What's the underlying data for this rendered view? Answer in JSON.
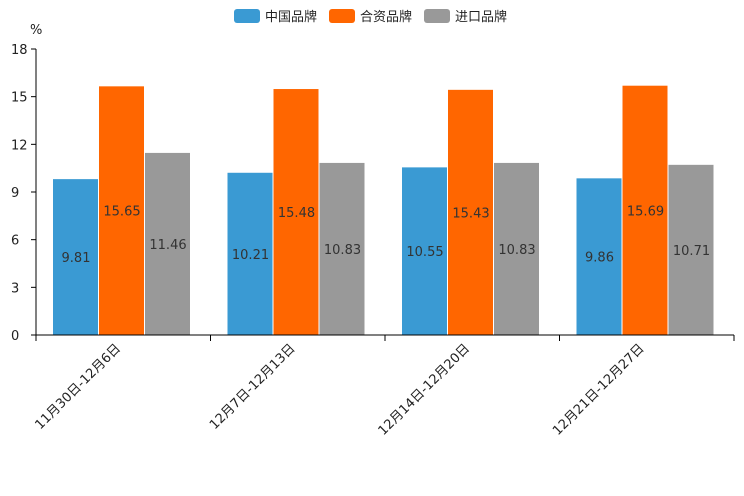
{
  "chart_data": {
    "type": "bar",
    "title": "",
    "xlabel": "",
    "ylabel": "%",
    "ylim": [
      0,
      18
    ],
    "yticks": [
      0,
      3,
      6,
      9,
      12,
      15,
      18
    ],
    "grid": false,
    "legend_position": "top-center",
    "categories": [
      "11月30日-12月6日",
      "12月7日-12月13日",
      "12月14日-12月20日",
      "12月21日-12月27日"
    ],
    "series": [
      {
        "name": "中国品牌",
        "color": "#3a9ad3",
        "values": [
          9.81,
          10.21,
          10.55,
          9.86
        ],
        "labels": [
          "9.81",
          "10.21",
          "10.55",
          "9.86"
        ]
      },
      {
        "name": "合资品牌",
        "color": "#ff6600",
        "values": [
          15.65,
          15.48,
          15.43,
          15.69
        ],
        "labels": [
          "15.65",
          "15.48",
          "15.43",
          "15.69"
        ]
      },
      {
        "name": "进口品牌",
        "color": "#999999",
        "values": [
          11.46,
          10.83,
          10.83,
          10.71
        ],
        "labels": [
          "11.46",
          "10.83",
          "10.83",
          "10.71"
        ]
      }
    ]
  }
}
